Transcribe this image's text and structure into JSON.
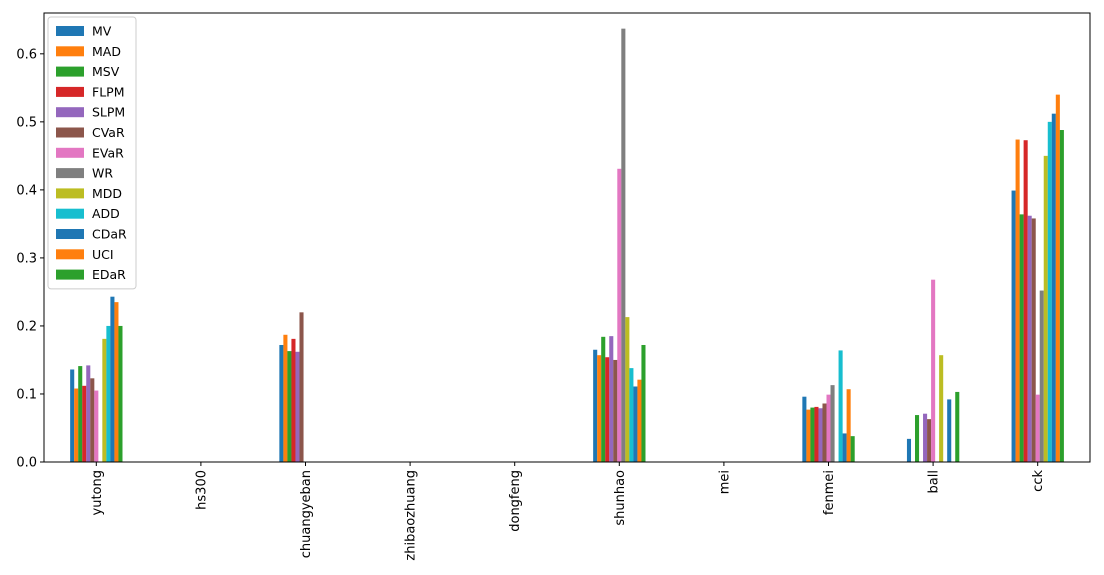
{
  "chart_data": {
    "type": "bar",
    "categories": [
      "yutong",
      "hs300",
      "chuangyeban",
      "zhibaozhuang",
      "dongfeng",
      "shunhao",
      "mei",
      "fenmei",
      "ball",
      "cck"
    ],
    "ylim": [
      0,
      0.66
    ],
    "yticks": [
      "0.0",
      "0.1",
      "0.2",
      "0.3",
      "0.4",
      "0.5",
      "0.6"
    ],
    "grid": false,
    "legend_position": "top-left",
    "series": [
      {
        "name": "MV",
        "color": "#1f77b4",
        "values": [
          0.136,
          0,
          0.172,
          0,
          0,
          0.165,
          0,
          0.096,
          0.034,
          0.399
        ]
      },
      {
        "name": "MAD",
        "color": "#ff7f0e",
        "values": [
          0.108,
          0,
          0.187,
          0,
          0,
          0.157,
          0,
          0.077,
          0,
          0.474
        ]
      },
      {
        "name": "MSV",
        "color": "#2ca02c",
        "values": [
          0.141,
          0,
          0.163,
          0,
          0,
          0.184,
          0,
          0.08,
          0.069,
          0.364
        ]
      },
      {
        "name": "FLPM",
        "color": "#d62728",
        "values": [
          0.112,
          0,
          0.181,
          0,
          0,
          0.154,
          0,
          0.081,
          0,
          0.473
        ]
      },
      {
        "name": "SLPM",
        "color": "#9467bd",
        "values": [
          0.142,
          0,
          0.162,
          0,
          0,
          0.185,
          0,
          0.079,
          0.071,
          0.362
        ]
      },
      {
        "name": "CVaR",
        "color": "#8c564b",
        "values": [
          0.123,
          0,
          0.22,
          0,
          0,
          0.15,
          0,
          0.086,
          0.063,
          0.358
        ]
      },
      {
        "name": "EVaR",
        "color": "#e377c2",
        "values": [
          0.105,
          0,
          0,
          0,
          0,
          0.431,
          0,
          0.099,
          0.268,
          0.099
        ]
      },
      {
        "name": "WR",
        "color": "#7f7f7f",
        "values": [
          0,
          0,
          0,
          0,
          0,
          0.637,
          0,
          0.113,
          0,
          0.252
        ]
      },
      {
        "name": "MDD",
        "color": "#bcbd22",
        "values": [
          0.181,
          0,
          0,
          0,
          0,
          0.213,
          0,
          0,
          0.157,
          0.45
        ]
      },
      {
        "name": "ADD",
        "color": "#17becf",
        "values": [
          0.2,
          0,
          0,
          0,
          0,
          0.138,
          0,
          0.164,
          0,
          0.5
        ]
      },
      {
        "name": "CDaR",
        "color": "#1f77b4",
        "values": [
          0.243,
          0,
          0,
          0,
          0,
          0.111,
          0,
          0.042,
          0.092,
          0.512
        ]
      },
      {
        "name": "UCI",
        "color": "#ff7f0e",
        "values": [
          0.235,
          0,
          0,
          0,
          0,
          0.121,
          0,
          0.107,
          0,
          0.54
        ]
      },
      {
        "name": "EDaR",
        "color": "#2ca02c",
        "values": [
          0.2,
          0,
          0,
          0,
          0,
          0.172,
          0,
          0.038,
          0.103,
          0.488
        ]
      }
    ]
  }
}
